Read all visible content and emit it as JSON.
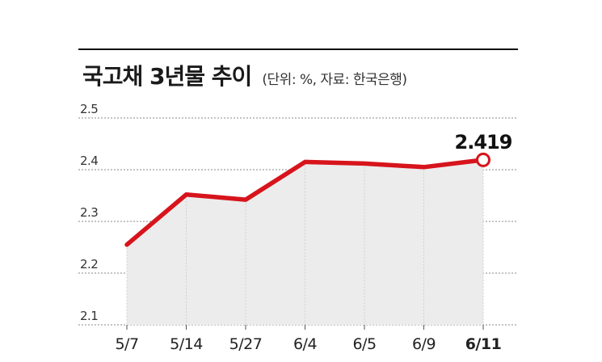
{
  "header": {
    "title": "국고채 3년물 추이",
    "subtitle": "(단위: %, 자료: 한국은행)"
  },
  "colors": {
    "line": "#d7141c",
    "area": "#ececec",
    "marker_fill": "#ffffff"
  },
  "chart_data": {
    "type": "line",
    "title": "국고채 3년물 추이",
    "subtitle": "(단위: %, 자료: 한국은행)",
    "categories": [
      "5/7",
      "5/14",
      "5/27",
      "6/4",
      "6/5",
      "6/9",
      "6/11"
    ],
    "series": [
      {
        "values": [
          2.255,
          2.352,
          2.342,
          2.415,
          2.412,
          2.405,
          2.419
        ]
      }
    ],
    "ylim": [
      2.1,
      2.5
    ],
    "yticks": [
      "2.1",
      "2.2",
      "2.3",
      "2.4",
      "2.5"
    ],
    "grid": true,
    "annotations": [
      {
        "category": "6/11",
        "text": "2.419"
      }
    ]
  }
}
